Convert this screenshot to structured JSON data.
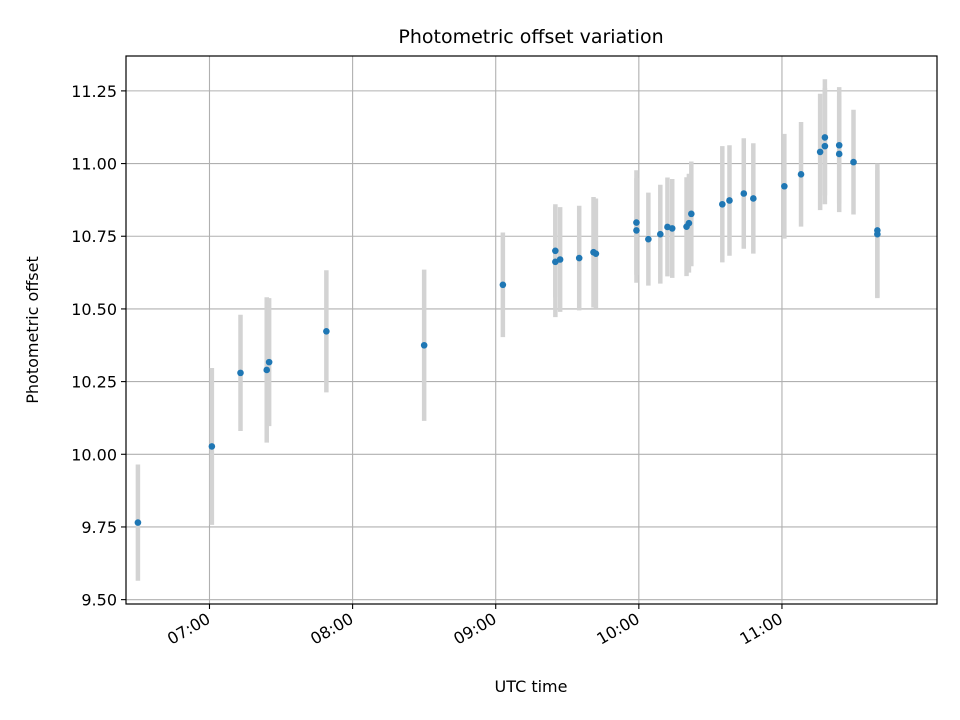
{
  "chart_data": {
    "type": "scatter",
    "title": "Photometric offset variation",
    "xlabel": "UTC time",
    "ylabel": "Photometric offset",
    "grid": true,
    "xlim": [
      "06:25",
      "12:05"
    ],
    "ylim": [
      9.485,
      11.37
    ],
    "x_ticks": [
      "07:00",
      "08:00",
      "09:00",
      "10:00",
      "11:00"
    ],
    "y_ticks": [
      "9.50",
      "9.75",
      "10.00",
      "10.25",
      "10.50",
      "10.75",
      "11.00",
      "11.25"
    ],
    "colors": {
      "points": "#1f77b4",
      "errorbars": "#d3d3d3",
      "grid": "#b0b0b0"
    },
    "series": [
      {
        "x": [
          "06:30",
          "07:01",
          "07:13",
          "07:24",
          "07:25",
          "07:49",
          "08:30",
          "09:03",
          "09:25",
          "09:25",
          "09:27",
          "09:35",
          "09:41",
          "09:42",
          "09:59",
          "09:59",
          "10:04",
          "10:09",
          "10:12",
          "10:14",
          "10:20",
          "10:21",
          "10:22",
          "10:35",
          "10:38",
          "10:44",
          "10:48",
          "11:01",
          "11:08",
          "11:16",
          "11:18",
          "11:18",
          "11:24",
          "11:24",
          "11:30",
          "11:40",
          "11:40"
        ],
        "y": [
          9.765,
          10.027,
          10.28,
          10.29,
          10.317,
          10.423,
          10.375,
          10.583,
          10.662,
          10.7,
          10.67,
          10.675,
          10.695,
          10.69,
          10.77,
          10.797,
          10.74,
          10.757,
          10.782,
          10.777,
          10.783,
          10.795,
          10.827,
          10.86,
          10.873,
          10.897,
          10.88,
          10.922,
          10.963,
          11.04,
          11.09,
          11.06,
          11.033,
          11.063,
          11.005,
          10.77,
          10.757
        ],
        "err": [
          0.2,
          0.27,
          0.2,
          0.25,
          0.22,
          0.21,
          0.26,
          0.18,
          0.19,
          0.16,
          0.18,
          0.18,
          0.19,
          0.19,
          0.18,
          0.18,
          0.16,
          0.17,
          0.17,
          0.17,
          0.17,
          0.17,
          0.18,
          0.2,
          0.19,
          0.19,
          0.19,
          0.18,
          0.18,
          0.2,
          0.2,
          0.2,
          0.2,
          0.2,
          0.18,
          0.23,
          0.22
        ]
      }
    ]
  }
}
